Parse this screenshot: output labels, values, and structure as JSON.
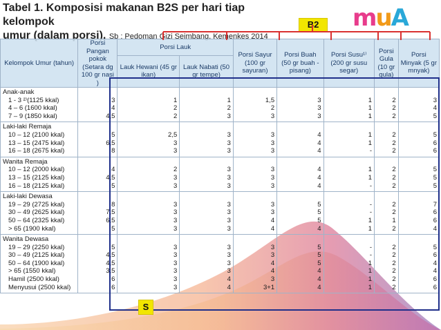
{
  "title": {
    "line1": "Tabel 1. Komposisi makanan B2S per hari tiap kelompok",
    "line2": "umur (dalam porsi),",
    "source": "Sb : Pedoman Gizi Seimbang, Kemenkes 2014"
  },
  "b2_label": "B2",
  "s_label": "S",
  "logo": {
    "m": "m",
    "u": "u",
    "a": "A"
  },
  "headers": {
    "group": "Kelompok Umur (tahun)",
    "pangan": "Porsi Pangan pokok (Setara dg 100 gr nasi )",
    "lauk": "Porsi Lauk",
    "hewani": "Lauk Hewani (45 gr ikan)",
    "nabati": "Lauk Nabati (50 gr tempe)",
    "sayur": "Porsi Sayur (100 gr sayuran)",
    "buah": "Porsi Buah (50 gr buah -pisang)",
    "susu": "Porsi Susu¹⁾ (200 gr susu segar)",
    "gula": "Porsi Gula (10 gr gula)",
    "minyak": "Porsi Minyak (5 gr mnyak)"
  },
  "groups": [
    {
      "name": "Anak-anak",
      "rows": [
        {
          "label": "1 - 3 ²⁾(1125 kkal)",
          "pangan": "3",
          "hewani": "1",
          "nabati": "1",
          "sayur": "1,5",
          "buah": "3",
          "susu": "1",
          "gula": "2",
          "minyak": "3"
        },
        {
          "label": "4 – 6 (1600 kkal)",
          "pangan": "4",
          "hewani": "2",
          "nabati": "2",
          "sayur": "2",
          "buah": "3",
          "susu": "1",
          "gula": "2",
          "minyak": "4"
        },
        {
          "label": "7 – 9 (1850 kkal)",
          "pangan": "4,5",
          "hewani": "2",
          "nabati": "3",
          "sayur": "3",
          "buah": "3",
          "susu": "1",
          "gula": "2",
          "minyak": "5"
        }
      ]
    },
    {
      "name": "Laki-laki Remaja",
      "rows": [
        {
          "label": "10 – 12 (2100 kkal)",
          "pangan": "5",
          "hewani": "2,5",
          "nabati": "3",
          "sayur": "3",
          "buah": "4",
          "susu": "1",
          "gula": "2",
          "minyak": "5"
        },
        {
          "label": "13 – 15 (2475 kkal)",
          "pangan": "6,5",
          "hewani": "3",
          "nabati": "3",
          "sayur": "3",
          "buah": "4",
          "susu": "1",
          "gula": "2",
          "minyak": "6"
        },
        {
          "label": "16 – 18 (2675 kkal)",
          "pangan": "8",
          "hewani": "3",
          "nabati": "3",
          "sayur": "3",
          "buah": "4",
          "susu": "-",
          "gula": "2",
          "minyak": "6"
        }
      ]
    },
    {
      "name": "Wanita Remaja",
      "rows": [
        {
          "label": "10 – 12 (2000 kkal)",
          "pangan": "4",
          "hewani": "2",
          "nabati": "3",
          "sayur": "3",
          "buah": "4",
          "susu": "1",
          "gula": "2",
          "minyak": "5"
        },
        {
          "label": "13 – 15 (2125 kkal)",
          "pangan": "4,5",
          "hewani": "3",
          "nabati": "3",
          "sayur": "3",
          "buah": "4",
          "susu": "1",
          "gula": "2",
          "minyak": "5"
        },
        {
          "label": "16 – 18 (2125 kkal)",
          "pangan": "5",
          "hewani": "3",
          "nabati": "3",
          "sayur": "3",
          "buah": "4",
          "susu": "-",
          "gula": "2",
          "minyak": "5"
        }
      ]
    },
    {
      "name": "Laki-laki Dewasa",
      "rows": [
        {
          "label": "19 – 29 (2725 kkal)",
          "pangan": "8",
          "hewani": "3",
          "nabati": "3",
          "sayur": "3",
          "buah": "5",
          "susu": "-",
          "gula": "2",
          "minyak": "7"
        },
        {
          "label": "30 – 49 (2625 kkal)",
          "pangan": "7,5",
          "hewani": "3",
          "nabati": "3",
          "sayur": "3",
          "buah": "5",
          "susu": "-",
          "gula": "2",
          "minyak": "6"
        },
        {
          "label": "50 – 64 (2325 kkal)",
          "pangan": "6,5",
          "hewani": "3",
          "nabati": "3",
          "sayur": "4",
          "buah": "5",
          "susu": "1",
          "gula": "1",
          "minyak": "6"
        },
        {
          "label": "> 65 (1900 kkal)",
          "pangan": "5",
          "hewani": "3",
          "nabati": "3",
          "sayur": "4",
          "buah": "4",
          "susu": "1",
          "gula": "2",
          "minyak": "4"
        }
      ]
    },
    {
      "name": "Wanita Dewasa",
      "rows": [
        {
          "label": "19 – 29 (2250 kkal)",
          "pangan": "5",
          "hewani": "3",
          "nabati": "3",
          "sayur": "3",
          "buah": "5",
          "susu": "-",
          "gula": "2",
          "minyak": "5"
        },
        {
          "label": "30 – 49 (2125 kkal)",
          "pangan": "4,5",
          "hewani": "3",
          "nabati": "3",
          "sayur": "3",
          "buah": "5",
          "susu": "-",
          "gula": "2",
          "minyak": "6"
        },
        {
          "label": "50 – 64 (1900 kkal)",
          "pangan": "4,5",
          "hewani": "3",
          "nabati": "3",
          "sayur": "4",
          "buah": "5",
          "susu": "1",
          "gula": "2",
          "minyak": "4"
        },
        {
          "label": "> 65 (1550 kkal)",
          "pangan": "3,5",
          "hewani": "3",
          "nabati": "3",
          "sayur": "4",
          "buah": "4",
          "susu": "1",
          "gula": "2",
          "minyak": "4"
        },
        {
          "label": "Hamil (2500 kkal)",
          "pangan": "6",
          "hewani": "3",
          "nabati": "4",
          "sayur": "3",
          "buah": "4",
          "susu": "1",
          "gula": "2",
          "minyak": "6"
        },
        {
          "label": "Menyusui (2500 kkal)",
          "pangan": "6",
          "hewani": "3",
          "nabati": "4",
          "sayur": "3+1",
          "buah": "4",
          "susu": "1",
          "gula": "2",
          "minyak": "6"
        }
      ]
    }
  ],
  "colors": {
    "accent_yellow": "#f2e600",
    "box_blue": "#1f2f8a",
    "bracket_red": "#d9302f"
  }
}
